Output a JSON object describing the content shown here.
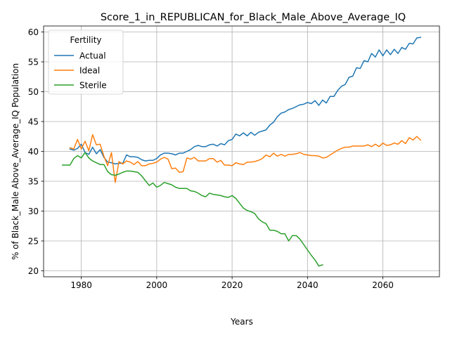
{
  "chart_data": {
    "type": "line",
    "title": "Score_1_in_REPUBLICAN_for_Black_Male_Above_Average_IQ",
    "xlabel": "Years",
    "ylabel": "% of Black_Male Above_Average_IQ Population",
    "xlim": [
      1970,
      2075
    ],
    "ylim": [
      19,
      61
    ],
    "xticks": [
      1980,
      2000,
      2020,
      2040,
      2060
    ],
    "yticks": [
      20,
      25,
      30,
      35,
      40,
      45,
      50,
      55,
      60
    ],
    "grid": true,
    "legend": {
      "title": "Fertility",
      "position": "upper-left"
    },
    "series": [
      {
        "name": "Actual",
        "color": "#1f77b4",
        "x": [
          1977,
          1978,
          1979,
          1980,
          1981,
          1982,
          1983,
          1984,
          1985,
          1986,
          1987,
          1988,
          1989,
          1990,
          1991,
          1992,
          1993,
          1994,
          1995,
          1996,
          1997,
          1998,
          1999,
          2000,
          2001,
          2002,
          2003,
          2004,
          2005,
          2006,
          2007,
          2008,
          2009,
          2010,
          2011,
          2012,
          2013,
          2014,
          2015,
          2016,
          2017,
          2018,
          2019,
          2020,
          2021,
          2022,
          2023,
          2024,
          2025,
          2026,
          2027,
          2028,
          2029,
          2030,
          2031,
          2032,
          2033,
          2034,
          2035,
          2036,
          2037,
          2038,
          2039,
          2040,
          2041,
          2042,
          2043,
          2044,
          2045,
          2046,
          2047,
          2048,
          2049,
          2050,
          2051,
          2052,
          2053,
          2054,
          2055,
          2056,
          2057,
          2058,
          2059,
          2060,
          2061,
          2062,
          2063,
          2064,
          2065,
          2066,
          2067,
          2068,
          2069,
          2070
        ],
        "y": [
          40.4,
          40.2,
          40.5,
          41.2,
          39.8,
          39.5,
          40.7,
          39.6,
          40.3,
          39.0,
          38.2,
          38.1,
          37.9,
          38.0,
          38.0,
          39.4,
          39.1,
          39.1,
          39.0,
          38.6,
          38.4,
          38.5,
          38.5,
          38.8,
          39.4,
          39.7,
          39.7,
          39.6,
          39.4,
          39.7,
          39.7,
          40.0,
          40.3,
          40.8,
          41.0,
          40.8,
          40.8,
          41.1,
          41.2,
          40.9,
          41.3,
          41.1,
          41.8,
          42.0,
          42.9,
          42.6,
          43.1,
          42.6,
          43.2,
          42.7,
          43.2,
          43.4,
          43.6,
          44.4,
          44.9,
          45.8,
          46.4,
          46.6,
          47.0,
          47.2,
          47.5,
          47.8,
          47.9,
          48.2,
          48.0,
          48.5,
          47.7,
          48.6,
          48.1,
          49.2,
          49.2,
          50.2,
          50.9,
          51.2,
          52.4,
          52.6,
          54.0,
          53.9,
          55.2,
          55.0,
          56.4,
          55.8,
          57.0,
          56.0,
          57.0,
          56.2,
          57.1,
          56.4,
          57.4,
          57.1,
          58.1,
          58.0,
          59.0,
          59.1
        ]
      },
      {
        "name": "Ideal",
        "color": "#ff7f0e",
        "x": [
          1977,
          1978,
          1979,
          1980,
          1981,
          1982,
          1983,
          1984,
          1985,
          1986,
          1987,
          1988,
          1989,
          1990,
          1991,
          1992,
          1993,
          1994,
          1995,
          1996,
          1997,
          1998,
          1999,
          2000,
          2001,
          2002,
          2003,
          2004,
          2005,
          2006,
          2007,
          2008,
          2009,
          2010,
          2011,
          2012,
          2013,
          2014,
          2015,
          2016,
          2017,
          2018,
          2019,
          2020,
          2021,
          2022,
          2023,
          2024,
          2025,
          2026,
          2027,
          2028,
          2029,
          2030,
          2031,
          2032,
          2033,
          2034,
          2035,
          2036,
          2037,
          2038,
          2039,
          2040,
          2041,
          2042,
          2043,
          2044,
          2045,
          2046,
          2047,
          2048,
          2049,
          2050,
          2051,
          2052,
          2053,
          2054,
          2055,
          2056,
          2057,
          2058,
          2059,
          2060,
          2061,
          2062,
          2063,
          2064,
          2065,
          2066,
          2067,
          2068,
          2069,
          2070
        ],
        "y": [
          40.6,
          40.4,
          42.0,
          40.4,
          41.7,
          40.1,
          42.8,
          41.1,
          41.2,
          39.2,
          37.6,
          39.8,
          34.8,
          38.3,
          37.9,
          38.4,
          38.2,
          37.8,
          38.3,
          37.6,
          37.6,
          37.9,
          38.0,
          38.2,
          38.7,
          39.0,
          38.7,
          37.1,
          37.2,
          36.5,
          36.6,
          38.9,
          38.7,
          39.0,
          38.4,
          38.4,
          38.4,
          38.8,
          38.8,
          38.2,
          38.5,
          37.7,
          37.7,
          37.6,
          38.1,
          37.9,
          37.8,
          38.2,
          38.2,
          38.3,
          38.5,
          38.8,
          39.4,
          39.1,
          39.7,
          39.2,
          39.5,
          39.2,
          39.5,
          39.5,
          39.6,
          39.8,
          39.5,
          39.4,
          39.3,
          39.3,
          39.2,
          38.9,
          39.0,
          39.4,
          39.8,
          40.2,
          40.5,
          40.7,
          40.7,
          40.9,
          40.9,
          40.9,
          40.9,
          41.1,
          40.8,
          41.2,
          40.8,
          41.4,
          41.0,
          41.1,
          41.4,
          41.2,
          41.8,
          41.3,
          42.3,
          41.9,
          42.5,
          41.9
        ]
      },
      {
        "name": "Sterile",
        "color": "#2ca02c",
        "x": [
          1975,
          1976,
          1977,
          1978,
          1979,
          1980,
          1981,
          1982,
          1983,
          1984,
          1985,
          1986,
          1987,
          1988,
          1989,
          1990,
          1991,
          1992,
          1993,
          1994,
          1995,
          1996,
          1997,
          1998,
          1999,
          2000,
          2001,
          2002,
          2003,
          2004,
          2005,
          2006,
          2007,
          2008,
          2009,
          2010,
          2011,
          2012,
          2013,
          2014,
          2015,
          2016,
          2017,
          2018,
          2019,
          2020,
          2021,
          2022,
          2023,
          2024,
          2025,
          2026,
          2027,
          2028,
          2029,
          2030,
          2031,
          2032,
          2033,
          2034,
          2035,
          2036,
          2037,
          2038,
          2039,
          2040,
          2041,
          2042,
          2043,
          2044
        ],
        "y": [
          37.7,
          37.7,
          37.7,
          38.8,
          39.3,
          38.9,
          39.8,
          38.9,
          38.4,
          38.1,
          37.8,
          37.8,
          36.6,
          36.1,
          36.0,
          36.2,
          36.5,
          36.7,
          36.7,
          36.6,
          36.5,
          35.9,
          35.1,
          34.3,
          34.7,
          34.0,
          34.3,
          34.8,
          34.6,
          34.4,
          34.0,
          33.8,
          33.8,
          33.8,
          33.4,
          33.3,
          33.0,
          32.6,
          32.4,
          33.0,
          32.8,
          32.7,
          32.6,
          32.4,
          32.3,
          32.6,
          32.1,
          31.3,
          30.5,
          30.1,
          29.9,
          29.6,
          28.7,
          28.2,
          27.9,
          26.8,
          26.8,
          26.6,
          26.2,
          26.2,
          25.0,
          25.9,
          25.9,
          25.3,
          24.4,
          23.5,
          22.6,
          21.8,
          20.8,
          21.0
        ]
      }
    ]
  }
}
